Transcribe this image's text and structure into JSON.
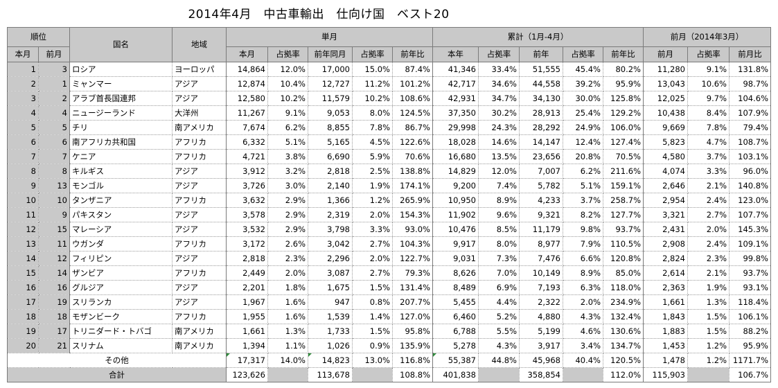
{
  "title": "2014年4月　中古車輸出　仕向け国　ベスト20",
  "headers": {
    "rank": "順位",
    "rank_cur": "本月",
    "rank_prev": "前月",
    "country": "国名",
    "region": "地域",
    "monthly": "単月",
    "cumulative": "累計（1月-4月）",
    "prev_month": "前月（2014年3月）",
    "m_cur": "本月",
    "m_share": "占拠率",
    "m_ly": "前年同月",
    "m_ly_share": "占拠率",
    "m_yoy": "前年比",
    "c_cur": "本年",
    "c_share": "占拠率",
    "c_ly": "前年",
    "c_ly_share": "占拠率",
    "c_yoy": "前年比",
    "p_val": "前月",
    "p_share": "占拠率",
    "p_ratio": "前月比"
  },
  "rows": [
    {
      "rank": "1",
      "prev": "3",
      "country": "ロシア",
      "region": "ヨーロッパ",
      "m_cur": "14,864",
      "m_share": "12.0%",
      "m_ly": "17,000",
      "m_ly_share": "15.0%",
      "m_yoy": "87.4%",
      "c_cur": "41,346",
      "c_share": "33.4%",
      "c_ly": "51,555",
      "c_ly_share": "45.4%",
      "c_yoy": "80.2%",
      "p_val": "11,280",
      "p_share": "9.1%",
      "p_ratio": "131.8%"
    },
    {
      "rank": "2",
      "prev": "1",
      "country": "ミャンマー",
      "region": "アジア",
      "m_cur": "12,874",
      "m_share": "10.4%",
      "m_ly": "12,727",
      "m_ly_share": "11.2%",
      "m_yoy": "101.2%",
      "c_cur": "42,717",
      "c_share": "34.6%",
      "c_ly": "44,558",
      "c_ly_share": "39.2%",
      "c_yoy": "95.9%",
      "p_val": "13,043",
      "p_share": "10.6%",
      "p_ratio": "98.7%"
    },
    {
      "rank": "3",
      "prev": "2",
      "country": "アラブ首長国連邦",
      "region": "アジア",
      "m_cur": "12,580",
      "m_share": "10.2%",
      "m_ly": "11,579",
      "m_ly_share": "10.2%",
      "m_yoy": "108.6%",
      "c_cur": "42,931",
      "c_share": "34.7%",
      "c_ly": "34,130",
      "c_ly_share": "30.0%",
      "c_yoy": "125.8%",
      "p_val": "12,025",
      "p_share": "9.7%",
      "p_ratio": "104.6%"
    },
    {
      "rank": "4",
      "prev": "4",
      "country": "ニュージーランド",
      "region": "大洋州",
      "m_cur": "11,267",
      "m_share": "9.1%",
      "m_ly": "9,053",
      "m_ly_share": "8.0%",
      "m_yoy": "124.5%",
      "c_cur": "37,350",
      "c_share": "30.2%",
      "c_ly": "28,913",
      "c_ly_share": "25.4%",
      "c_yoy": "129.2%",
      "p_val": "10,438",
      "p_share": "8.4%",
      "p_ratio": "107.9%"
    },
    {
      "rank": "5",
      "prev": "5",
      "country": "チリ",
      "region": "南アメリカ",
      "m_cur": "7,674",
      "m_share": "6.2%",
      "m_ly": "8,855",
      "m_ly_share": "7.8%",
      "m_yoy": "86.7%",
      "c_cur": "29,998",
      "c_share": "24.3%",
      "c_ly": "28,292",
      "c_ly_share": "24.9%",
      "c_yoy": "106.0%",
      "p_val": "9,669",
      "p_share": "7.8%",
      "p_ratio": "79.4%"
    },
    {
      "rank": "6",
      "prev": "6",
      "country": "南アフリカ共和国",
      "region": "アフリカ",
      "m_cur": "6,332",
      "m_share": "5.1%",
      "m_ly": "5,165",
      "m_ly_share": "4.5%",
      "m_yoy": "122.6%",
      "c_cur": "18,028",
      "c_share": "14.6%",
      "c_ly": "14,147",
      "c_ly_share": "12.4%",
      "c_yoy": "127.4%",
      "p_val": "5,823",
      "p_share": "4.7%",
      "p_ratio": "108.7%"
    },
    {
      "rank": "7",
      "prev": "7",
      "country": "ケニア",
      "region": "アフリカ",
      "m_cur": "4,721",
      "m_share": "3.8%",
      "m_ly": "6,690",
      "m_ly_share": "5.9%",
      "m_yoy": "70.6%",
      "c_cur": "16,680",
      "c_share": "13.5%",
      "c_ly": "23,656",
      "c_ly_share": "20.8%",
      "c_yoy": "70.5%",
      "p_val": "4,580",
      "p_share": "3.7%",
      "p_ratio": "103.1%"
    },
    {
      "rank": "8",
      "prev": "8",
      "country": "キルギス",
      "region": "アジア",
      "m_cur": "3,912",
      "m_share": "3.2%",
      "m_ly": "2,818",
      "m_ly_share": "2.5%",
      "m_yoy": "138.8%",
      "c_cur": "14,829",
      "c_share": "12.0%",
      "c_ly": "7,007",
      "c_ly_share": "6.2%",
      "c_yoy": "211.6%",
      "p_val": "4,074",
      "p_share": "3.3%",
      "p_ratio": "96.0%"
    },
    {
      "rank": "9",
      "prev": "13",
      "country": "モンゴル",
      "region": "アジア",
      "m_cur": "3,726",
      "m_share": "3.0%",
      "m_ly": "2,140",
      "m_ly_share": "1.9%",
      "m_yoy": "174.1%",
      "c_cur": "9,200",
      "c_share": "7.4%",
      "c_ly": "5,782",
      "c_ly_share": "5.1%",
      "c_yoy": "159.1%",
      "p_val": "2,646",
      "p_share": "2.1%",
      "p_ratio": "140.8%"
    },
    {
      "rank": "10",
      "prev": "10",
      "country": "タンザニア",
      "region": "アフリカ",
      "m_cur": "3,632",
      "m_share": "2.9%",
      "m_ly": "1,366",
      "m_ly_share": "1.2%",
      "m_yoy": "265.9%",
      "c_cur": "10,950",
      "c_share": "8.9%",
      "c_ly": "4,233",
      "c_ly_share": "3.7%",
      "c_yoy": "258.7%",
      "p_val": "2,954",
      "p_share": "2.4%",
      "p_ratio": "123.0%"
    },
    {
      "rank": "11",
      "prev": "9",
      "country": "パキスタン",
      "region": "アジア",
      "m_cur": "3,578",
      "m_share": "2.9%",
      "m_ly": "2,319",
      "m_ly_share": "2.0%",
      "m_yoy": "154.3%",
      "c_cur": "11,902",
      "c_share": "9.6%",
      "c_ly": "9,321",
      "c_ly_share": "8.2%",
      "c_yoy": "127.7%",
      "p_val": "3,321",
      "p_share": "2.7%",
      "p_ratio": "107.7%"
    },
    {
      "rank": "12",
      "prev": "15",
      "country": "マレーシア",
      "region": "アジア",
      "m_cur": "3,532",
      "m_share": "2.9%",
      "m_ly": "3,798",
      "m_ly_share": "3.3%",
      "m_yoy": "93.0%",
      "c_cur": "10,476",
      "c_share": "8.5%",
      "c_ly": "11,179",
      "c_ly_share": "9.8%",
      "c_yoy": "93.7%",
      "p_val": "2,431",
      "p_share": "2.0%",
      "p_ratio": "145.3%"
    },
    {
      "rank": "13",
      "prev": "11",
      "country": "ウガンダ",
      "region": "アフリカ",
      "m_cur": "3,172",
      "m_share": "2.6%",
      "m_ly": "3,042",
      "m_ly_share": "2.7%",
      "m_yoy": "104.3%",
      "c_cur": "9,917",
      "c_share": "8.0%",
      "c_ly": "8,977",
      "c_ly_share": "7.9%",
      "c_yoy": "110.5%",
      "p_val": "2,908",
      "p_share": "2.4%",
      "p_ratio": "109.1%"
    },
    {
      "rank": "14",
      "prev": "12",
      "country": "フィリピン",
      "region": "アジア",
      "m_cur": "2,818",
      "m_share": "2.3%",
      "m_ly": "2,296",
      "m_ly_share": "2.0%",
      "m_yoy": "122.7%",
      "c_cur": "9,031",
      "c_share": "7.3%",
      "c_ly": "7,476",
      "c_ly_share": "6.6%",
      "c_yoy": "120.8%",
      "p_val": "2,824",
      "p_share": "2.3%",
      "p_ratio": "99.8%"
    },
    {
      "rank": "15",
      "prev": "14",
      "country": "ザンビア",
      "region": "アフリカ",
      "m_cur": "2,449",
      "m_share": "2.0%",
      "m_ly": "3,087",
      "m_ly_share": "2.7%",
      "m_yoy": "79.3%",
      "c_cur": "8,626",
      "c_share": "7.0%",
      "c_ly": "10,149",
      "c_ly_share": "8.9%",
      "c_yoy": "85.0%",
      "p_val": "2,614",
      "p_share": "2.1%",
      "p_ratio": "93.7%"
    },
    {
      "rank": "16",
      "prev": "16",
      "country": "グルジア",
      "region": "アジア",
      "m_cur": "2,201",
      "m_share": "1.8%",
      "m_ly": "1,675",
      "m_ly_share": "1.5%",
      "m_yoy": "131.4%",
      "c_cur": "8,489",
      "c_share": "6.9%",
      "c_ly": "7,193",
      "c_ly_share": "6.3%",
      "c_yoy": "118.0%",
      "p_val": "2,363",
      "p_share": "1.9%",
      "p_ratio": "93.1%"
    },
    {
      "rank": "17",
      "prev": "19",
      "country": "スリランカ",
      "region": "アジア",
      "m_cur": "1,967",
      "m_share": "1.6%",
      "m_ly": "947",
      "m_ly_share": "0.8%",
      "m_yoy": "207.7%",
      "c_cur": "5,455",
      "c_share": "4.4%",
      "c_ly": "2,322",
      "c_ly_share": "2.0%",
      "c_yoy": "234.9%",
      "p_val": "1,661",
      "p_share": "1.3%",
      "p_ratio": "118.4%"
    },
    {
      "rank": "18",
      "prev": "18",
      "country": "モザンビーク",
      "region": "アフリカ",
      "m_cur": "1,955",
      "m_share": "1.6%",
      "m_ly": "1,539",
      "m_ly_share": "1.4%",
      "m_yoy": "127.0%",
      "c_cur": "6,460",
      "c_share": "5.2%",
      "c_ly": "4,880",
      "c_ly_share": "4.3%",
      "c_yoy": "132.4%",
      "p_val": "1,843",
      "p_share": "1.5%",
      "p_ratio": "106.1%"
    },
    {
      "rank": "19",
      "prev": "17",
      "country": "トリニダード・トバゴ",
      "region": "南アメリカ",
      "m_cur": "1,661",
      "m_share": "1.3%",
      "m_ly": "1,733",
      "m_ly_share": "1.5%",
      "m_yoy": "95.8%",
      "c_cur": "6,788",
      "c_share": "5.5%",
      "c_ly": "5,199",
      "c_ly_share": "4.6%",
      "c_yoy": "130.6%",
      "p_val": "1,883",
      "p_share": "1.5%",
      "p_ratio": "88.2%"
    },
    {
      "rank": "20",
      "prev": "21",
      "country": "スリナム",
      "region": "南アメリカ",
      "m_cur": "1,394",
      "m_share": "1.1%",
      "m_ly": "1,026",
      "m_ly_share": "0.9%",
      "m_yoy": "135.9%",
      "c_cur": "5,278",
      "c_share": "4.3%",
      "c_ly": "3,917",
      "c_ly_share": "3.4%",
      "c_yoy": "134.7%",
      "p_val": "1,453",
      "p_share": "1.2%",
      "p_ratio": "95.9%"
    }
  ],
  "other": {
    "label": "その他",
    "m_cur": "17,317",
    "m_share": "14.0%",
    "m_ly": "14,823",
    "m_ly_share": "13.0%",
    "m_yoy": "116.8%",
    "c_cur": "55,387",
    "c_share": "44.8%",
    "c_ly": "45,968",
    "c_ly_share": "40.4%",
    "c_yoy": "120.5%",
    "p_val": "1,478",
    "p_share": "1.2%",
    "p_ratio": "1171.7%"
  },
  "total": {
    "label": "合計",
    "m_cur": "123,626",
    "m_ly": "113,678",
    "m_yoy": "108.8%",
    "c_cur": "401,838",
    "c_ly": "358,854",
    "c_yoy": "112.0%",
    "p_val": "115,903",
    "p_ratio": "106.7%"
  },
  "colors": {
    "header_bg": "#c9c9c9",
    "border": "#7a7a7a",
    "marker": "#2e8b3a"
  }
}
